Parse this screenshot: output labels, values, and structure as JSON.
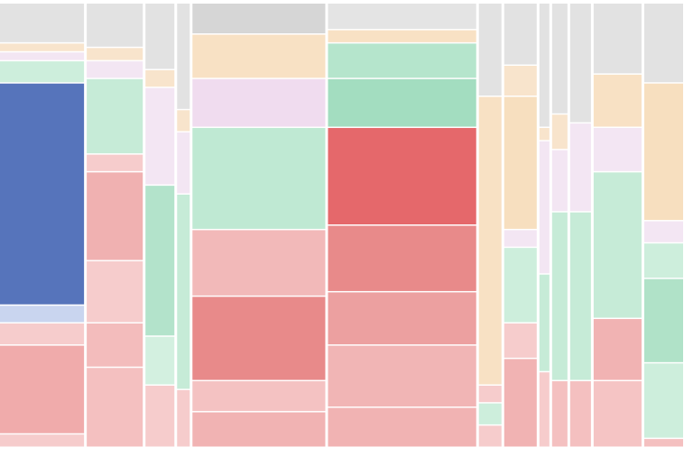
{
  "chart_data": {
    "type": "mosaic",
    "columns": [
      {
        "width": 93,
        "segments": [
          {
            "value": 9,
            "color": "#e2e2e2"
          },
          {
            "value": 2,
            "color": "#f8e4cc"
          },
          {
            "value": 2,
            "color": "#f3e6f3"
          },
          {
            "value": 5,
            "color": "#cdeedc"
          },
          {
            "value": 50,
            "color": "#5674bb"
          },
          {
            "value": 4,
            "color": "#c9d5ef"
          },
          {
            "value": 5,
            "color": "#f6cccc"
          },
          {
            "value": 20,
            "color": "#f0abab"
          },
          {
            "value": 3,
            "color": "#f6cccc"
          }
        ]
      },
      {
        "width": 62,
        "segments": [
          {
            "value": 10,
            "color": "#e2e2e2"
          },
          {
            "value": 3,
            "color": "#f8e4cc"
          },
          {
            "value": 4,
            "color": "#f3e6f3"
          },
          {
            "value": 17,
            "color": "#c6ebd7"
          },
          {
            "value": 4,
            "color": "#f6cccc"
          },
          {
            "value": 20,
            "color": "#f0b1b1"
          },
          {
            "value": 14,
            "color": "#f6cccc"
          },
          {
            "value": 10,
            "color": "#f3bcbc"
          },
          {
            "value": 18,
            "color": "#f4c0c0"
          }
        ]
      },
      {
        "width": 32,
        "segments": [
          {
            "value": 15,
            "color": "#e2e2e2"
          },
          {
            "value": 4,
            "color": "#f8e4cc"
          },
          {
            "value": 22,
            "color": "#f3e6f3"
          },
          {
            "value": 34,
            "color": "#b3e3cb"
          },
          {
            "value": 11,
            "color": "#d3f0e0"
          },
          {
            "value": 14,
            "color": "#f6cccc"
          }
        ]
      },
      {
        "width": 14,
        "segments": [
          {
            "value": 24,
            "color": "#e2e2e2"
          },
          {
            "value": 5,
            "color": "#f8e4cc"
          },
          {
            "value": 14,
            "color": "#f3e6f3"
          },
          {
            "value": 44,
            "color": "#c6ebd7"
          },
          {
            "value": 13,
            "color": "#f6cccc"
          }
        ]
      },
      {
        "width": 147,
        "segments": [
          {
            "value": 7,
            "color": "#d6d6d6"
          },
          {
            "value": 10,
            "color": "#f8e1c4"
          },
          {
            "value": 11,
            "color": "#f0dcef"
          },
          {
            "value": 23,
            "color": "#bfe9d3"
          },
          {
            "value": 15,
            "color": "#f2b9b9"
          },
          {
            "value": 19,
            "color": "#e88a8a"
          },
          {
            "value": 7,
            "color": "#f4c2c2"
          },
          {
            "value": 8,
            "color": "#f1b3b3"
          }
        ]
      },
      {
        "width": 164,
        "segments": [
          {
            "value": 6,
            "color": "#e4e4e4"
          },
          {
            "value": 3,
            "color": "#f8e1c4"
          },
          {
            "value": 8,
            "color": "#b5e5cc"
          },
          {
            "value": 11,
            "color": "#a3ddc0"
          },
          {
            "value": 22,
            "color": "#e5686b"
          },
          {
            "value": 15,
            "color": "#e88a8a"
          },
          {
            "value": 12,
            "color": "#eca0a0"
          },
          {
            "value": 14,
            "color": "#f1b5b5"
          },
          {
            "value": 9,
            "color": "#f1b3b3"
          }
        ]
      },
      {
        "width": 25,
        "segments": [
          {
            "value": 21,
            "color": "#e2e2e2"
          },
          {
            "value": 65,
            "color": "#f8e1c4"
          },
          {
            "value": 4,
            "color": "#f6cccc"
          },
          {
            "value": 5,
            "color": "#cdeedc"
          },
          {
            "value": 5,
            "color": "#f6cccc"
          }
        ]
      },
      {
        "width": 36,
        "segments": [
          {
            "value": 14,
            "color": "#e2e2e2"
          },
          {
            "value": 7,
            "color": "#f8e4cc"
          },
          {
            "value": 30,
            "color": "#f7dfbf"
          },
          {
            "value": 4,
            "color": "#f3e6f3"
          },
          {
            "value": 17,
            "color": "#cdeedc"
          },
          {
            "value": 8,
            "color": "#f6cccc"
          },
          {
            "value": 20,
            "color": "#f1b3b3"
          }
        ]
      },
      {
        "width": 11,
        "segments": [
          {
            "value": 28,
            "color": "#e2e2e2"
          },
          {
            "value": 3,
            "color": "#f8e4cc"
          },
          {
            "value": 30,
            "color": "#f3e6f3"
          },
          {
            "value": 22,
            "color": "#c6ebd7"
          },
          {
            "value": 17,
            "color": "#f6cccc"
          }
        ]
      },
      {
        "width": 17,
        "segments": [
          {
            "value": 25,
            "color": "#e2e2e2"
          },
          {
            "value": 8,
            "color": "#f8e4cc"
          },
          {
            "value": 14,
            "color": "#f3e6f3"
          },
          {
            "value": 38,
            "color": "#c6ebd7"
          },
          {
            "value": 15,
            "color": "#f4c0c0"
          }
        ]
      },
      {
        "width": 23,
        "segments": [
          {
            "value": 27,
            "color": "#e2e2e2"
          },
          {
            "value": 20,
            "color": "#f3e6f3"
          },
          {
            "value": 38,
            "color": "#c6ebd7"
          },
          {
            "value": 15,
            "color": "#f4c0c0"
          }
        ]
      },
      {
        "width": 53,
        "segments": [
          {
            "value": 16,
            "color": "#e2e2e2"
          },
          {
            "value": 12,
            "color": "#f8e1c4"
          },
          {
            "value": 10,
            "color": "#f3e6f3"
          },
          {
            "value": 33,
            "color": "#c6ebd7"
          },
          {
            "value": 14,
            "color": "#f1b3b3"
          },
          {
            "value": 15,
            "color": "#f5c4c4"
          }
        ]
      },
      {
        "width": 43,
        "segments": [
          {
            "value": 18,
            "color": "#e2e2e2"
          },
          {
            "value": 31,
            "color": "#f7dfbf"
          },
          {
            "value": 5,
            "color": "#f3e6f3"
          },
          {
            "value": 8,
            "color": "#cdeedc"
          },
          {
            "value": 19,
            "color": "#b0e2c8"
          },
          {
            "value": 17,
            "color": "#cdeedc"
          },
          {
            "value": 2,
            "color": "#f4c0c0"
          }
        ]
      }
    ]
  }
}
